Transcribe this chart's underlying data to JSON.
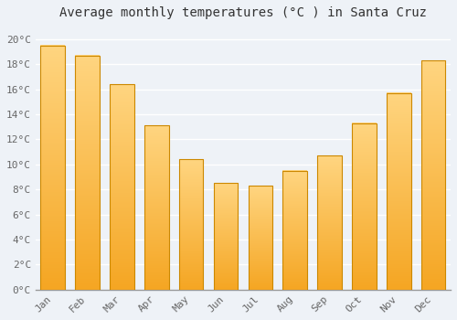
{
  "title": "Average monthly temperatures (°C ) in Santa Cruz",
  "months": [
    "Jan",
    "Feb",
    "Mar",
    "Apr",
    "May",
    "Jun",
    "Jul",
    "Aug",
    "Sep",
    "Oct",
    "Nov",
    "Dec"
  ],
  "values": [
    19.5,
    18.7,
    16.4,
    13.1,
    10.4,
    8.5,
    8.3,
    9.5,
    10.7,
    13.3,
    15.7,
    18.3
  ],
  "ylim": [
    0,
    21
  ],
  "yticks": [
    0,
    2,
    4,
    6,
    8,
    10,
    12,
    14,
    16,
    18,
    20
  ],
  "ytick_labels": [
    "0°C",
    "2°C",
    "4°C",
    "6°C",
    "8°C",
    "10°C",
    "12°C",
    "14°C",
    "16°C",
    "18°C",
    "20°C"
  ],
  "background_color": "#eef2f7",
  "plot_bg_color": "#eef2f7",
  "grid_color": "#ffffff",
  "title_fontsize": 10,
  "tick_fontsize": 8,
  "bar_bottom_color": "#F5A623",
  "bar_top_color": "#FFD580",
  "bar_edge_color": "#CC8800",
  "bar_width": 0.7,
  "tick_color": "#666666",
  "title_color": "#333333",
  "spine_color": "#999999"
}
